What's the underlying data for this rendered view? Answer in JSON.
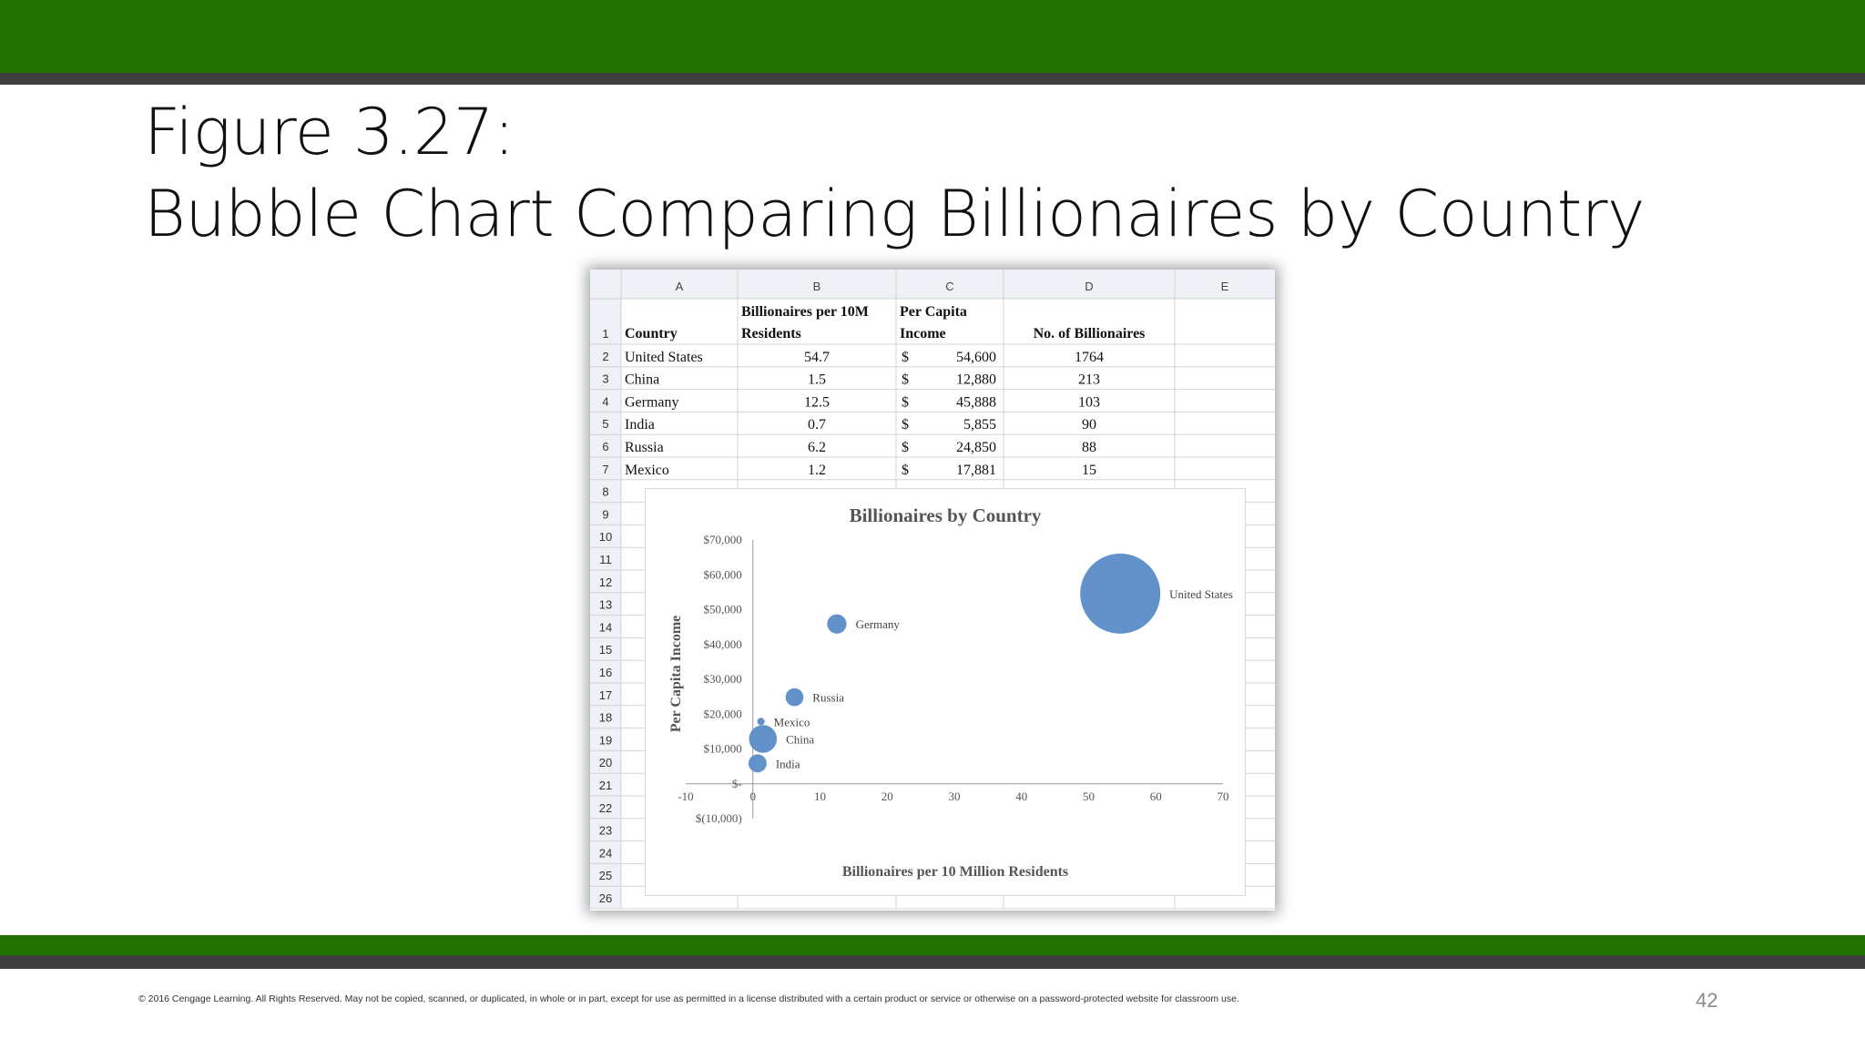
{
  "slide": {
    "title_line1": "Figure 3.27:",
    "title_line2": "Bubble Chart Comparing Billionaires by Country",
    "footer": "© 2016 Cengage Learning.  All Rights Reserved.  May not be copied, scanned, or duplicated, in whole or in part, except for use as permitted in a license distributed with a certain product or service or otherwise on a password-protected website for classroom use.",
    "page_number": "42"
  },
  "spreadsheet": {
    "column_letters": [
      "A",
      "B",
      "C",
      "D",
      "E"
    ],
    "row_numbers": [
      "1",
      "2",
      "3",
      "4",
      "5",
      "6",
      "7",
      "8",
      "9",
      "10",
      "11",
      "12",
      "13",
      "14",
      "15",
      "16",
      "17",
      "18",
      "19",
      "20",
      "21",
      "22",
      "23",
      "24",
      "25",
      "26"
    ],
    "headers": {
      "country": "Country",
      "billionaires_line1": "Billionaires per 10M",
      "billionaires_line2": "Residents",
      "income_line1": "Per Capita",
      "income_line2": "Income",
      "count": "No. of Billionaires"
    },
    "currency_symbol": "$",
    "rows": [
      {
        "country": "United States",
        "per10m": "54.7",
        "income": "54,600",
        "count": "1764"
      },
      {
        "country": "China",
        "per10m": "1.5",
        "income": "12,880",
        "count": "213"
      },
      {
        "country": "Germany",
        "per10m": "12.5",
        "income": "45,888",
        "count": "103"
      },
      {
        "country": "India",
        "per10m": "0.7",
        "income": "5,855",
        "count": "90"
      },
      {
        "country": "Russia",
        "per10m": "6.2",
        "income": "24,850",
        "count": "88"
      },
      {
        "country": "Mexico",
        "per10m": "1.2",
        "income": "17,881",
        "count": "15"
      }
    ]
  },
  "chart_data": {
    "type": "scatter",
    "variant": "bubble",
    "title": "Billionaires by Country",
    "xlabel": "Billionaires per 10 Million Residents",
    "ylabel": "Per Capita Income",
    "xlim": [
      -10,
      70
    ],
    "ylim": [
      -10000,
      70000
    ],
    "x_ticks": [
      "-10",
      "0",
      "10",
      "20",
      "30",
      "40",
      "50",
      "60",
      "70"
    ],
    "y_ticks": [
      "$(10,000)",
      "$-",
      "$10,000",
      "$20,000",
      "$30,000",
      "$40,000",
      "$50,000",
      "$60,000",
      "$70,000"
    ],
    "grid": false,
    "legend": "none",
    "bubble_color": "#5b8cc8",
    "points": [
      {
        "label": "United States",
        "x": 54.7,
        "y": 54600,
        "size": 1764
      },
      {
        "label": "China",
        "x": 1.5,
        "y": 12880,
        "size": 213
      },
      {
        "label": "Germany",
        "x": 12.5,
        "y": 45888,
        "size": 103
      },
      {
        "label": "India",
        "x": 0.7,
        "y": 5855,
        "size": 90
      },
      {
        "label": "Russia",
        "x": 6.2,
        "y": 24850,
        "size": 88
      },
      {
        "label": "Mexico",
        "x": 1.2,
        "y": 17881,
        "size": 15
      }
    ]
  }
}
